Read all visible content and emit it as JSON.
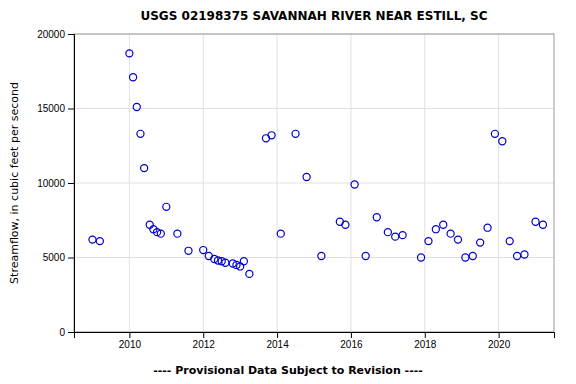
{
  "chart_data": {
    "type": "scatter",
    "title": "USGS 02198375 SAVANNAH RIVER NEAR ESTILL, SC",
    "ylabel": "Streamflow, in cubic feet per second",
    "footnote": "---- Provisional Data Subject to Revision ----",
    "x": [
      2009.0,
      2009.2,
      2010.0,
      2010.1,
      2010.2,
      2010.3,
      2010.4,
      2010.55,
      2010.65,
      2010.75,
      2010.85,
      2011.0,
      2011.3,
      2011.6,
      2012.0,
      2012.15,
      2012.3,
      2012.4,
      2012.5,
      2012.6,
      2012.8,
      2012.9,
      2013.0,
      2013.1,
      2013.25,
      2013.7,
      2013.85,
      2014.1,
      2014.5,
      2014.8,
      2015.2,
      2015.7,
      2015.85,
      2016.1,
      2016.4,
      2016.7,
      2017.0,
      2017.2,
      2017.4,
      2017.9,
      2018.1,
      2018.3,
      2018.5,
      2018.7,
      2018.9,
      2019.1,
      2019.3,
      2019.5,
      2019.7,
      2019.9,
      2020.1,
      2020.3,
      2020.5,
      2020.7,
      2021.0,
      2021.2
    ],
    "values": [
      6200,
      6100,
      18700,
      17100,
      15100,
      13300,
      11000,
      7200,
      6900,
      6700,
      6600,
      8400,
      6600,
      5450,
      5500,
      5100,
      4900,
      4800,
      4750,
      4650,
      4600,
      4500,
      4400,
      4750,
      3900,
      13000,
      13200,
      6600,
      13300,
      10400,
      5100,
      7400,
      7200,
      9900,
      5100,
      7700,
      6700,
      6400,
      6500,
      5000,
      6100,
      6900,
      7200,
      6600,
      6200,
      5000,
      5100,
      6000,
      7000,
      13300,
      12800,
      6100,
      5100,
      5200,
      7400,
      7200
    ],
    "color": "#0000cc",
    "marker": "circle",
    "xlim": [
      2008.5,
      2021.5
    ],
    "xticks": [
      2010,
      2012,
      2014,
      2016,
      2018,
      2020
    ],
    "ylim": [
      0,
      20000
    ],
    "yticks": [
      0,
      5000,
      10000,
      15000,
      20000
    ],
    "grid": true
  }
}
